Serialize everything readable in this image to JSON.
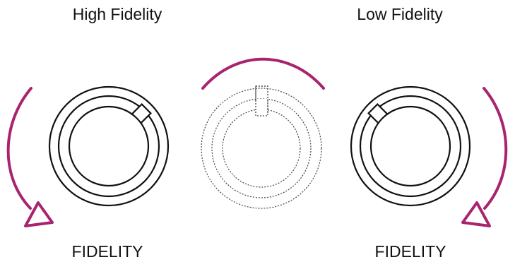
{
  "labels": {
    "high_fidelity": "High Fidelity",
    "low_fidelity": "Low Fidelity",
    "left_knob": "FIDELITY",
    "right_knob": "FIDELITY"
  },
  "colors": {
    "arrow": "#a8246f",
    "stroke": "#111111",
    "ghost_stroke": "#444444"
  },
  "icons": {
    "left_knob": "rotary-knob-icon",
    "center_knob": "rotary-knob-ghost-icon",
    "right_knob": "rotary-knob-icon",
    "left_arrow": "counterclockwise-arrow-icon",
    "center_arrow": "arc-icon",
    "right_arrow": "clockwise-arrow-icon"
  }
}
